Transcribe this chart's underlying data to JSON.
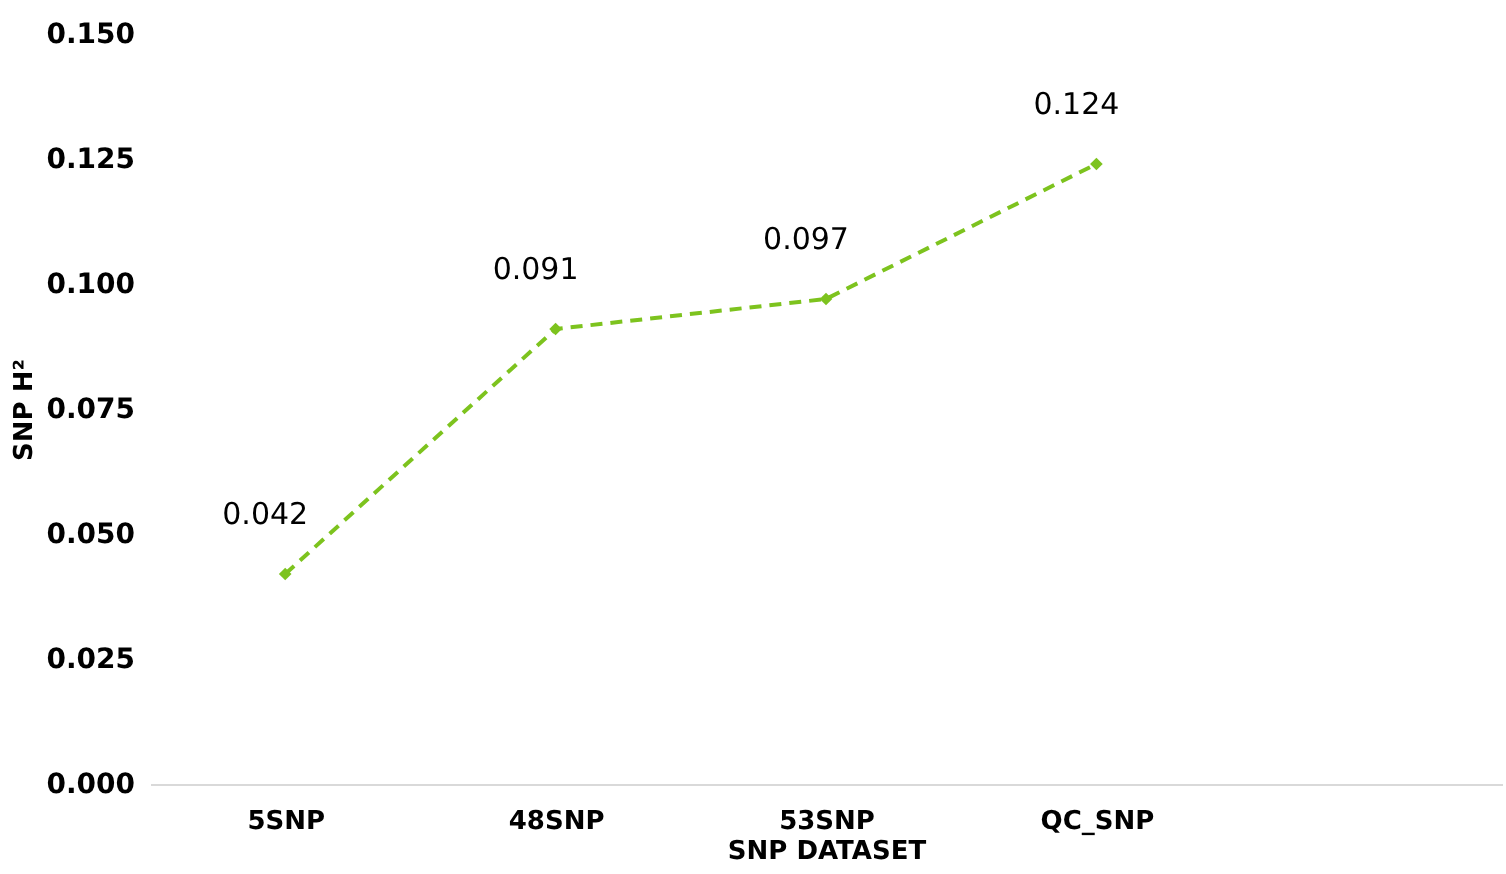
{
  "chart_data": {
    "type": "line",
    "xlabel": "SNP DATASET",
    "ylabel": "SNP H²",
    "categories": [
      "5SNP",
      "48SNP",
      "53SNP",
      "QC_SNP",
      null
    ],
    "series": [
      {
        "color": "#7dc31e",
        "values": [
          0.042,
          0.091,
          0.097,
          0.124,
          null
        ]
      }
    ],
    "ylim": [
      0,
      0.15
    ],
    "yticks": [
      {
        "value": 0,
        "label": "0.000"
      },
      {
        "value": 0.025,
        "label": "0.025"
      },
      {
        "value": 0.05,
        "label": "0.050"
      },
      {
        "value": 0.075,
        "label": "0.075"
      },
      {
        "value": 0.1,
        "label": "0.100"
      },
      {
        "value": 0.125,
        "label": "0.125"
      },
      {
        "value": 0.15,
        "label": "0.150"
      }
    ],
    "data_labels": true,
    "grid": false,
    "marker": "diamond",
    "line_style": "dashed"
  }
}
